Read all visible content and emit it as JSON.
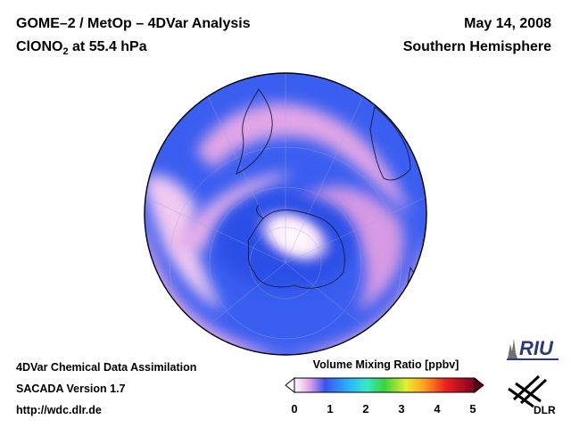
{
  "header": {
    "title": "GOME–2 / MetOp – 4DVar Analysis",
    "species_main": "ClONO",
    "species_sub": "2",
    "species_level": " at 55.4 hPa",
    "date": "May 14, 2008",
    "region": "Southern Hemisphere"
  },
  "footer": {
    "line1": "4DVar Chemical Data Assimilation",
    "line2": "SACADA Version 1.7",
    "line3": "http://wdc.dlr.de"
  },
  "colorbar": {
    "label": "Volume Mixing Ratio [ppbv]",
    "ticks": [
      "0",
      "1",
      "2",
      "3",
      "4",
      "5"
    ],
    "range": [
      0,
      5
    ]
  },
  "logos": {
    "riu": "RIU",
    "dlr": "DLR"
  },
  "colors": {
    "field_low": "#2f5bea",
    "field_mid": "#e4a9e6",
    "field_high": "#ffffff"
  }
}
